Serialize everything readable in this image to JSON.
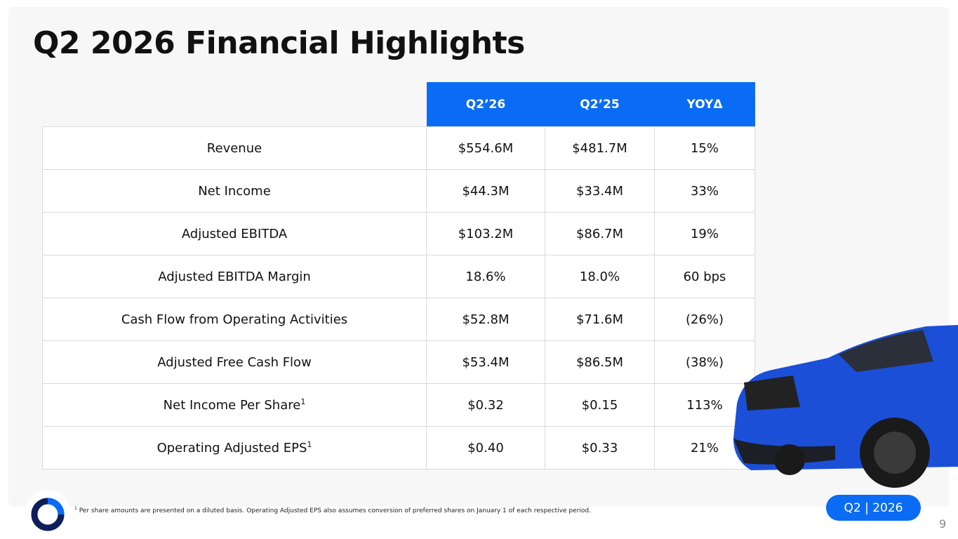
{
  "header": {
    "title": "Q2 2026 Financial Highlights"
  },
  "table": {
    "columns": [
      "Q2’26",
      "Q2’25",
      "YOYΔ"
    ],
    "rows": [
      {
        "label": "Revenue",
        "cells": [
          "$554.6M",
          "$481.7M",
          "15%"
        ]
      },
      {
        "label": "Net Income",
        "cells": [
          "$44.3M",
          "$33.4M",
          "33%"
        ]
      },
      {
        "label": "Adjusted EBITDA",
        "cells": [
          "$103.2M",
          "$86.7M",
          "19%"
        ]
      },
      {
        "label": "Adjusted EBITDA Margin",
        "cells": [
          "18.6%",
          "18.0%",
          "60 bps"
        ]
      },
      {
        "label": "Cash Flow from Operating Activities",
        "cells": [
          "$52.8M",
          "$71.6M",
          "(26%)"
        ]
      },
      {
        "label": "Adjusted Free Cash Flow",
        "cells": [
          "$53.4M",
          "$86.5M",
          "(38%)"
        ]
      },
      {
        "label": "Net Income Per Share",
        "note": "1",
        "cells": [
          "$0.32",
          "$0.15",
          "113%"
        ]
      },
      {
        "label": "Operating Adjusted EPS",
        "note": "1",
        "cells": [
          "$0.40",
          "$0.33",
          "21%"
        ]
      }
    ]
  },
  "footnote": {
    "marker": "1",
    "text": "Per share amounts are presented on a diluted basis. Operating Adjusted EPS also assumes conversion of preferred shares on January 1 of each respective period."
  },
  "badge": "Q2 | 2026",
  "page_number": "9"
}
